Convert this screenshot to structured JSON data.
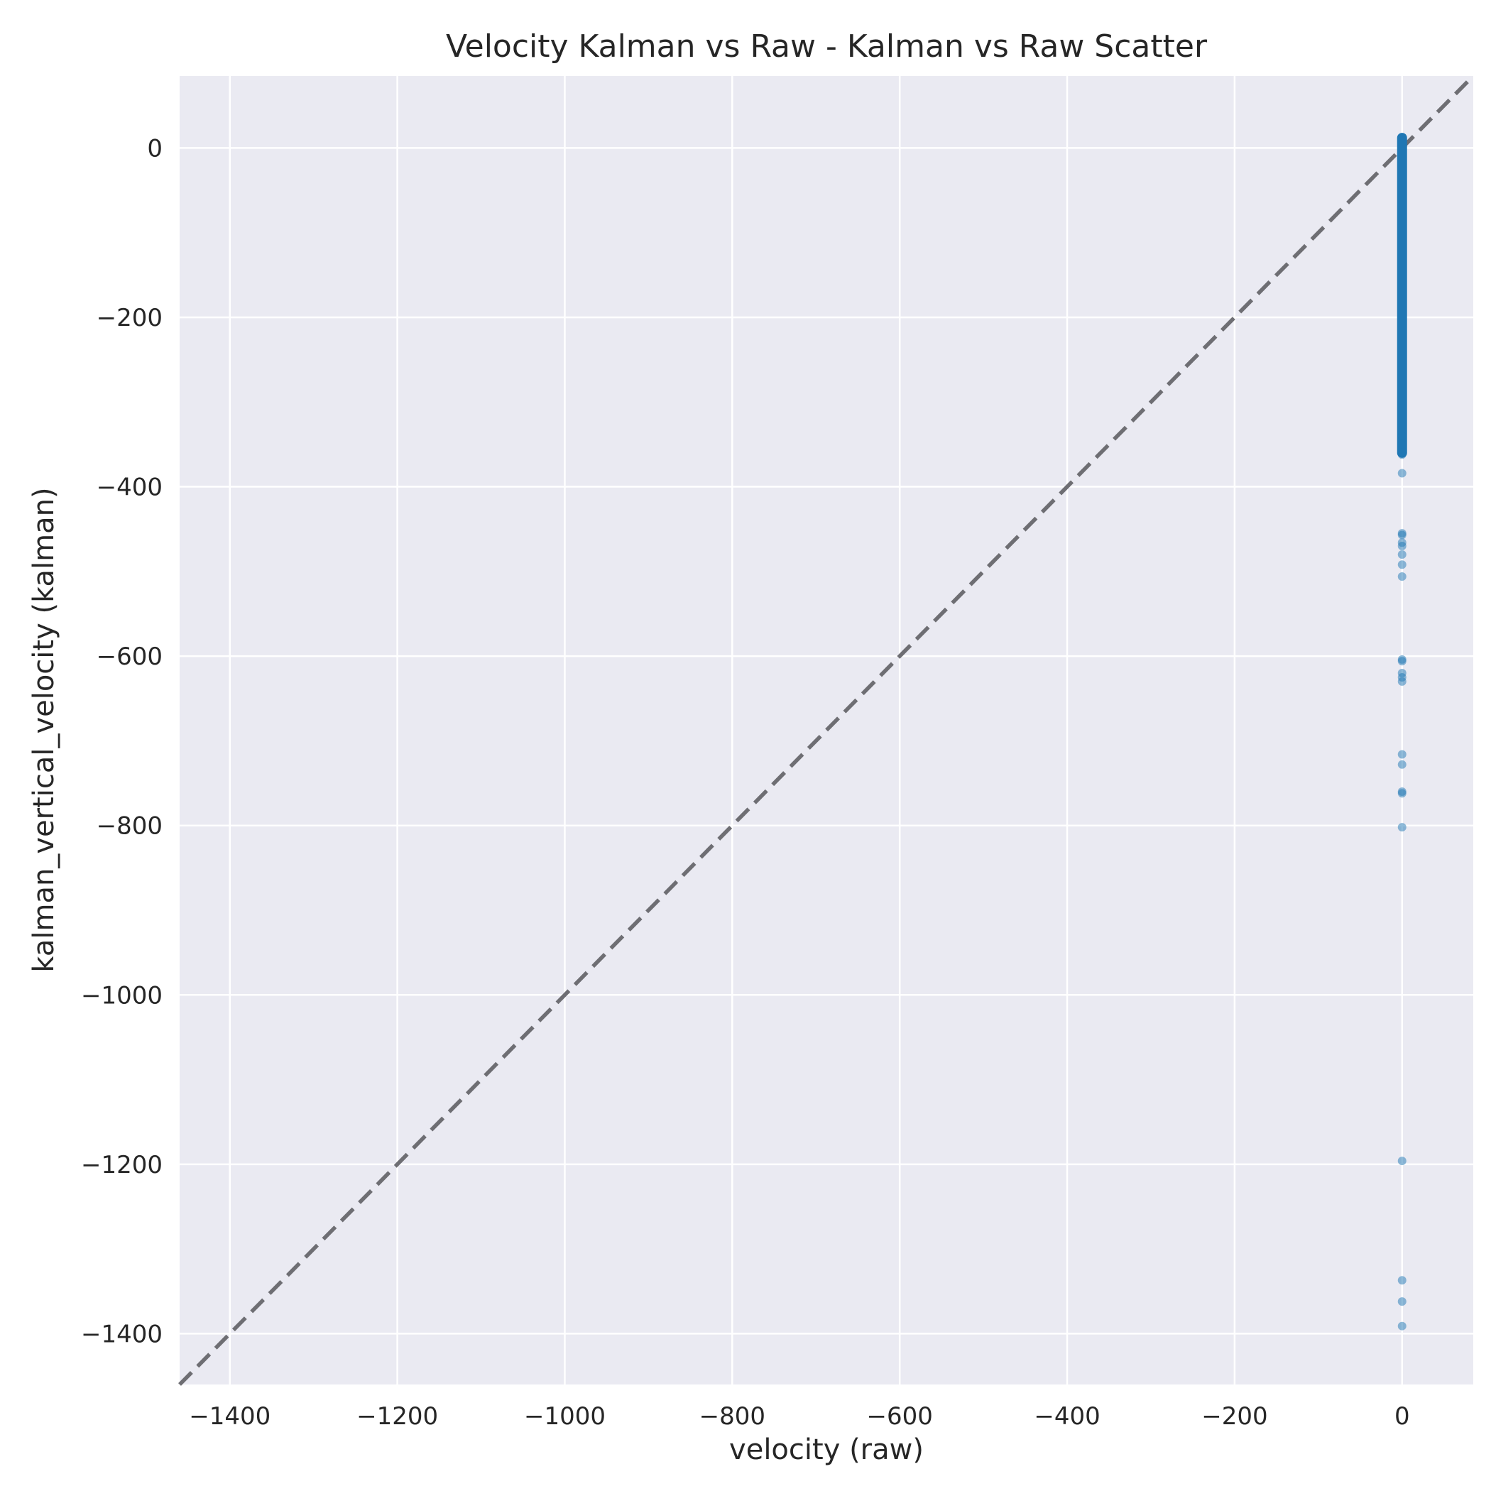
{
  "chart_data": {
    "type": "scatter",
    "title": "Velocity Kalman vs Raw - Kalman vs Raw Scatter",
    "xlabel": "velocity (raw)",
    "ylabel": "kalman_vertical_velocity (kalman)",
    "xlim": [
      -1460,
      85
    ],
    "ylim": [
      -1460,
      85
    ],
    "xticks": [
      -1400,
      -1200,
      -1000,
      -800,
      -600,
      -400,
      -200,
      0
    ],
    "yticks": [
      0,
      -200,
      -400,
      -600,
      -800,
      -1000,
      -1200,
      -1400
    ],
    "grid": true,
    "legend": "none",
    "colors": {
      "background": "#eaeaf2",
      "grid": "#ffffff",
      "points": "#1f77b4",
      "reference_line": "#6e6e73"
    },
    "reference_line": {
      "label": "",
      "from": [
        -1460,
        -1460
      ],
      "to": [
        85,
        85
      ],
      "style": "dashed"
    },
    "dense_band": {
      "x": 0,
      "y_min": -360,
      "y_max": 12
    },
    "series": [
      {
        "name": "",
        "x": [
          0,
          0,
          0,
          0,
          0,
          0,
          0,
          0,
          0,
          0,
          0,
          0,
          0,
          0,
          0,
          0,
          0,
          0,
          0,
          0,
          0,
          0,
          0,
          0,
          0,
          0
        ],
        "y": [
          -384,
          -455,
          -457,
          -466,
          -470,
          -480,
          -492,
          -506,
          -604,
          -606,
          -620,
          -625,
          -630,
          -716,
          -728,
          -760,
          -762,
          -802,
          -1196,
          -1337,
          -1362,
          -1391,
          -362,
          -358,
          -350,
          -340
        ]
      }
    ]
  }
}
